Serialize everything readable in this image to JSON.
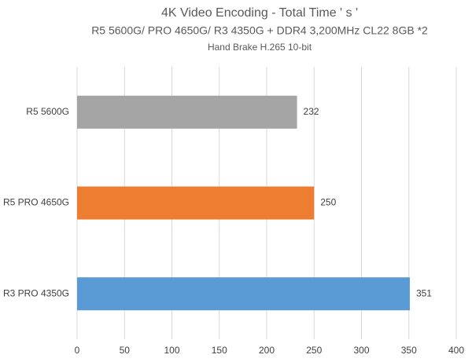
{
  "chart_data": {
    "type": "bar",
    "orientation": "horizontal",
    "title": "4K Video Encoding - Total Time ' s '",
    "subtitle": "R5 5600G/ PRO 4650G/ R3 4350G + DDR4 3,200MHz CL22 8GB *2",
    "caption": "Hand Brake H.265 10-bit",
    "categories": [
      "R5 5600G",
      "R5 PRO 4650G",
      "R3 PRO 4350G"
    ],
    "values": [
      232,
      250,
      351
    ],
    "colors": [
      "#a5a5a5",
      "#ed7d31",
      "#5b9bd5"
    ],
    "xlim": [
      0,
      400
    ],
    "xticks": [
      0,
      50,
      100,
      150,
      200,
      250,
      300,
      350,
      400
    ],
    "grid": true
  }
}
